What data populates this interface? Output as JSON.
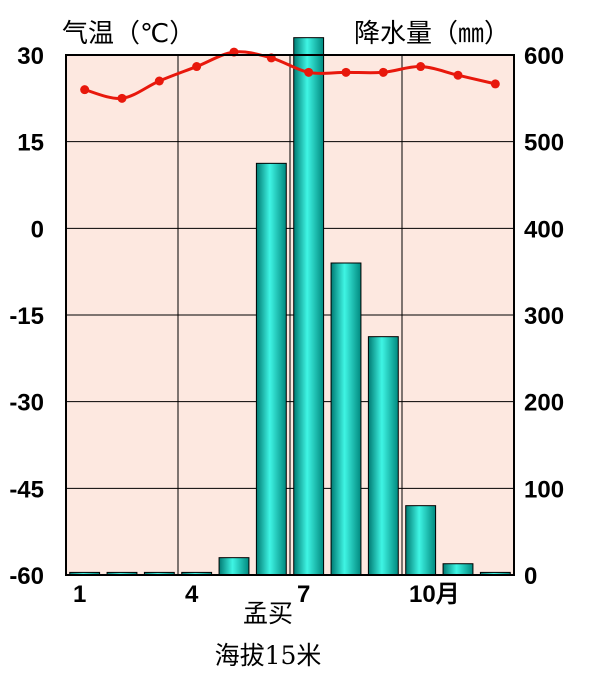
{
  "chart_data": {
    "type": "bar+line",
    "title_left": "气温（℃）",
    "title_right": "降水量（㎜）",
    "months": [
      1,
      2,
      3,
      4,
      5,
      6,
      7,
      8,
      9,
      10,
      11,
      12
    ],
    "x_tick_labels": [
      {
        "month": 1,
        "label": "1"
      },
      {
        "month": 4,
        "label": "4"
      },
      {
        "month": 7,
        "label": "7"
      },
      {
        "month": 10,
        "label": "10月"
      }
    ],
    "temperature": {
      "unit": "℃",
      "values": [
        24,
        22.5,
        25.5,
        28,
        30.5,
        29.5,
        27,
        27,
        27,
        28,
        26.5,
        25
      ],
      "ylim": [
        -60,
        30
      ],
      "ticks": [
        30,
        15,
        0,
        -15,
        -30,
        -45,
        -60
      ]
    },
    "precipitation": {
      "unit": "㎜",
      "values": [
        3,
        3,
        3,
        3,
        20,
        475,
        620,
        360,
        275,
        80,
        13,
        3
      ],
      "ylim": [
        0,
        600
      ],
      "ticks": [
        600,
        500,
        400,
        300,
        200,
        100,
        0
      ]
    },
    "colors": {
      "plot_bg": "#fde8e0",
      "bar": "#00d8c8",
      "line": "#e8180c",
      "grid": "#000000"
    }
  },
  "caption": {
    "station": "孟买",
    "elevation": "海拔15米"
  }
}
